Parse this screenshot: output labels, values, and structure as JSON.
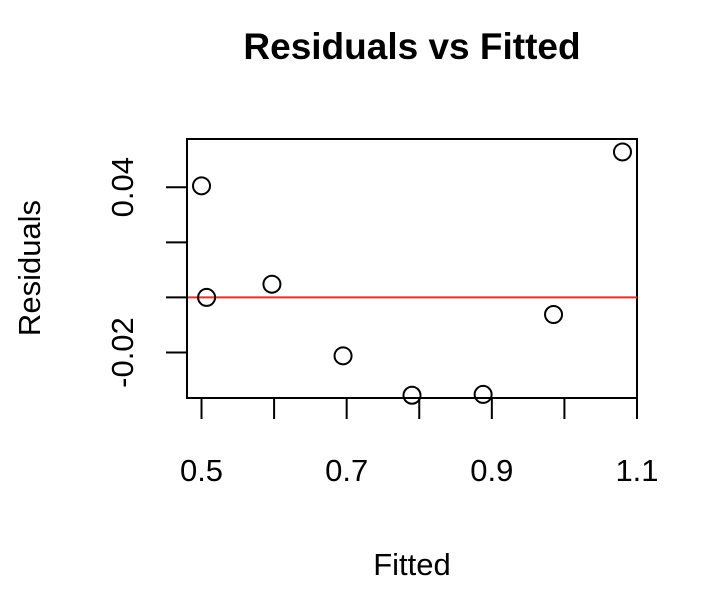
{
  "chart_data": {
    "type": "scatter",
    "title": "Residuals vs Fitted",
    "xlabel": "Fitted",
    "ylabel": "Residuals",
    "xlim": [
      0.48,
      1.1
    ],
    "ylim": [
      -0.0365,
      0.0575
    ],
    "x_ticks": [
      0.5,
      0.6,
      0.7,
      0.8,
      0.9,
      1.0,
      1.1
    ],
    "x_tick_labels": [
      "0.5",
      "",
      "0.7",
      "",
      "0.9",
      "",
      "1.1"
    ],
    "y_ticks": [
      -0.02,
      0.0,
      0.02,
      0.04
    ],
    "y_tick_labels": [
      "-0.02",
      "",
      "",
      "0.04"
    ],
    "points": [
      {
        "x": 0.5,
        "y": 0.0405
      },
      {
        "x": 0.507,
        "y": 0.0
      },
      {
        "x": 0.597,
        "y": 0.0048
      },
      {
        "x": 0.695,
        "y": -0.0212
      },
      {
        "x": 0.79,
        "y": -0.0355
      },
      {
        "x": 0.888,
        "y": -0.0352
      },
      {
        "x": 0.985,
        "y": -0.0062
      },
      {
        "x": 1.08,
        "y": 0.0528
      }
    ],
    "reference_line": {
      "y": 0.0,
      "color": "#e8302a"
    },
    "point_style": "open-circle",
    "grid": false,
    "legend": "none"
  }
}
